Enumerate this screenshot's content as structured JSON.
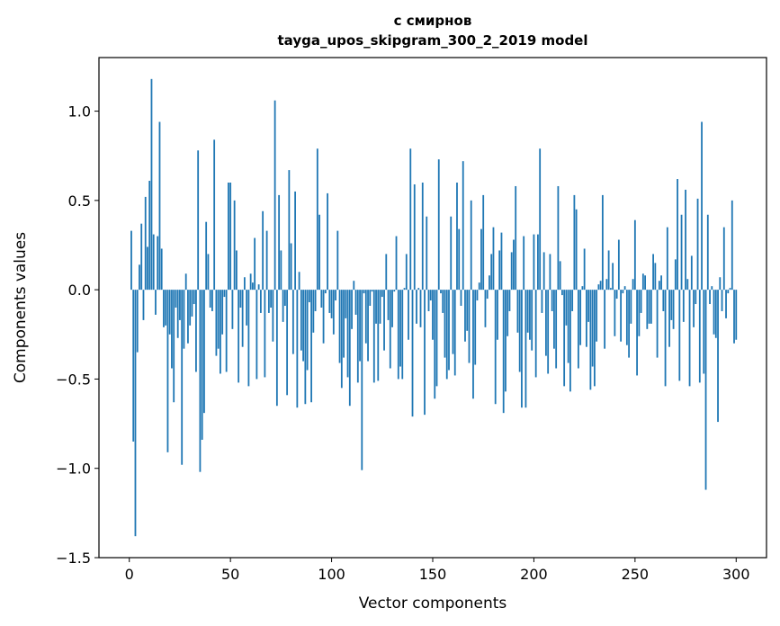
{
  "chart_data": {
    "type": "bar",
    "title_line1": "с смирнов",
    "title_line2": "tayga_upos_skipgram_300_2_2019 model",
    "xlabel": "Vector components",
    "ylabel": "Components values",
    "xlim": [
      -15,
      315
    ],
    "ylim": [
      -1.5,
      1.3
    ],
    "xticks": [
      0,
      50,
      100,
      150,
      200,
      250,
      300
    ],
    "xtick_labels": [
      "0",
      "50",
      "100",
      "150",
      "200",
      "250",
      "300"
    ],
    "yticks": [
      -1.5,
      -1.0,
      -0.5,
      0.0,
      0.5,
      1.0
    ],
    "ytick_labels": [
      "−1.5",
      "−1.0",
      "−0.5",
      "0.0",
      "0.5",
      "1.0"
    ],
    "bar_color": "#1f77b4",
    "grid": false,
    "values": [
      0.33,
      -0.85,
      -1.38,
      -0.35,
      0.14,
      0.37,
      -0.17,
      0.52,
      0.24,
      0.61,
      1.18,
      0.31,
      -0.14,
      0.3,
      0.94,
      0.23,
      -0.21,
      -0.2,
      -0.91,
      -0.25,
      -0.44,
      -0.63,
      -0.1,
      -0.27,
      -0.17,
      -0.98,
      -0.33,
      0.09,
      -0.3,
      -0.2,
      -0.15,
      -0.08,
      -0.46,
      0.78,
      -1.02,
      -0.84,
      -0.69,
      0.38,
      0.2,
      -0.1,
      -0.12,
      0.84,
      -0.37,
      -0.33,
      -0.47,
      -0.25,
      -0.04,
      -0.46,
      0.6,
      0.6,
      -0.22,
      0.5,
      0.22,
      -0.52,
      -0.1,
      -0.32,
      0.07,
      -0.2,
      -0.54,
      0.09,
      0.04,
      0.29,
      -0.5,
      0.03,
      -0.13,
      0.44,
      -0.49,
      0.33,
      -0.13,
      -0.1,
      -0.29,
      1.06,
      -0.65,
      0.53,
      0.22,
      -0.18,
      -0.09,
      -0.59,
      0.67,
      0.26,
      -0.36,
      0.55,
      -0.66,
      0.1,
      -0.34,
      -0.4,
      -0.64,
      -0.45,
      -0.07,
      -0.63,
      -0.24,
      -0.12,
      0.79,
      0.42,
      -0.1,
      -0.3,
      -0.02,
      0.54,
      -0.13,
      -0.16,
      -0.25,
      -0.06,
      0.33,
      -0.41,
      -0.55,
      -0.38,
      -0.16,
      -0.49,
      -0.65,
      -0.22,
      0.05,
      -0.14,
      -0.52,
      -0.4,
      -1.01,
      -0.02,
      -0.3,
      -0.4,
      -0.09,
      -0.01,
      -0.52,
      -0.19,
      -0.51,
      -0.19,
      -0.04,
      -0.34,
      0.2,
      -0.17,
      -0.44,
      -0.21,
      -0.01,
      0.3,
      -0.5,
      -0.43,
      -0.5,
      0.01,
      0.2,
      -0.28,
      0.79,
      -0.71,
      0.59,
      -0.19,
      0.01,
      -0.21,
      0.6,
      -0.7,
      0.41,
      -0.12,
      -0.06,
      -0.28,
      -0.61,
      -0.54,
      0.73,
      -0.02,
      -0.13,
      -0.38,
      -0.5,
      -0.45,
      0.41,
      -0.36,
      -0.48,
      0.6,
      0.34,
      -0.09,
      0.72,
      -0.29,
      -0.23,
      -0.41,
      0.5,
      -0.61,
      -0.42,
      -0.06,
      0.04,
      0.34,
      0.53,
      -0.21,
      -0.05,
      0.08,
      0.2,
      0.35,
      -0.64,
      -0.28,
      0.22,
      0.32,
      -0.69,
      -0.57,
      -0.26,
      -0.12,
      0.21,
      0.28,
      0.58,
      -0.24,
      -0.46,
      -0.66,
      0.3,
      -0.66,
      -0.24,
      -0.28,
      -0.34,
      0.31,
      -0.49,
      0.31,
      0.79,
      -0.13,
      0.21,
      -0.37,
      -0.47,
      0.2,
      -0.12,
      -0.33,
      -0.44,
      0.58,
      0.16,
      -0.03,
      -0.54,
      -0.2,
      -0.41,
      -0.57,
      -0.12,
      0.53,
      0.45,
      -0.44,
      -0.31,
      0.02,
      0.23,
      -0.32,
      -0.18,
      -0.56,
      -0.43,
      -0.54,
      -0.29,
      0.03,
      0.05,
      0.53,
      -0.33,
      0.06,
      0.22,
      0.01,
      0.15,
      -0.26,
      -0.05,
      0.28,
      -0.29,
      -0.02,
      0.02,
      -0.31,
      -0.38,
      -0.19,
      0.06,
      0.39,
      -0.48,
      -0.26,
      -0.13,
      0.09,
      0.08,
      -0.22,
      -0.19,
      -0.19,
      0.2,
      0.15,
      -0.38,
      0.05,
      0.08,
      -0.12,
      -0.54,
      0.35,
      -0.32,
      -0.17,
      -0.22,
      0.17,
      0.62,
      -0.51,
      0.42,
      -0.18,
      0.56,
      0.06,
      -0.54,
      0.19,
      -0.21,
      -0.08,
      0.51,
      -0.52,
      0.94,
      -0.47,
      -1.12,
      0.42,
      -0.08,
      0.02,
      -0.25,
      -0.27,
      -0.74,
      0.07,
      -0.12,
      0.35,
      -0.16,
      -0.02,
      0.01,
      0.5,
      -0.3,
      -0.28
    ]
  }
}
